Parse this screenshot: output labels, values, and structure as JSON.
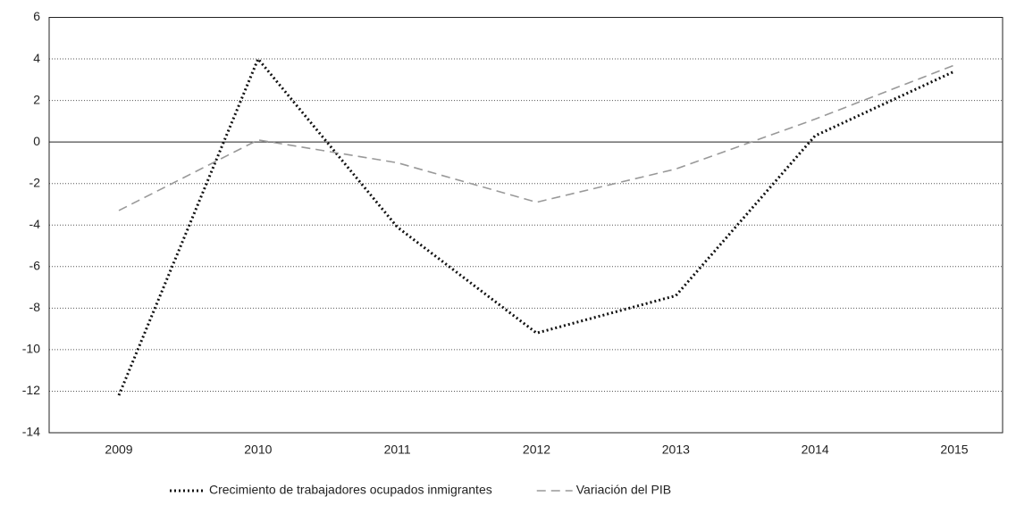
{
  "chart_data": {
    "type": "line",
    "categories": [
      "2009",
      "2010",
      "2011",
      "2012",
      "2013",
      "2014",
      "2015"
    ],
    "series": [
      {
        "name": "Crecimiento de trabajadores ocupados inmigrantes",
        "color": "#111111",
        "style": "dotted",
        "values": [
          -12.2,
          4.0,
          -4.1,
          -9.2,
          -7.4,
          0.3,
          3.4
        ]
      },
      {
        "name": "Variación del PIB",
        "color": "#999999",
        "style": "dashed",
        "values": [
          -3.3,
          0.1,
          -1.0,
          -2.9,
          -1.3,
          1.1,
          3.7
        ]
      }
    ],
    "ylim": [
      -14,
      6
    ],
    "yticks": [
      -14,
      -12,
      -10,
      -8,
      -6,
      -4,
      -2,
      0,
      2,
      4,
      6
    ],
    "grid": true
  }
}
